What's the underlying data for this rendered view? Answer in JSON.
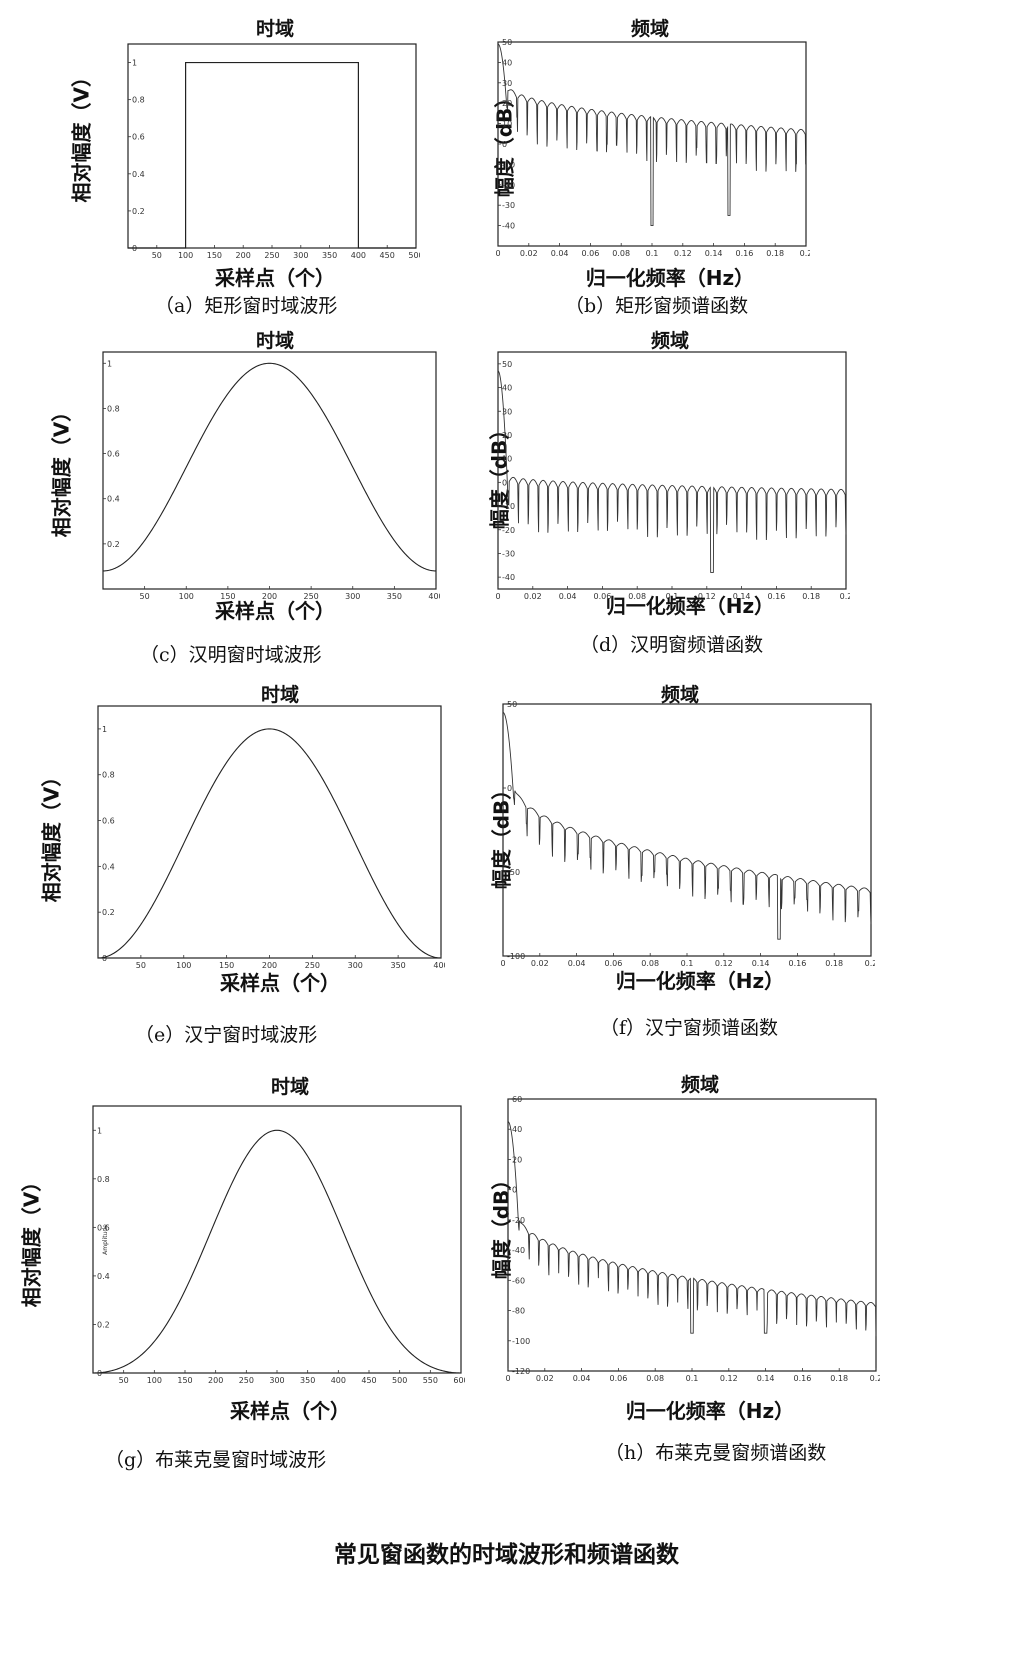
{
  "main_caption": "常见窗函数的时域波形和频谱函数",
  "chart_data": [
    {
      "id": "a",
      "type": "line",
      "shape": "rect",
      "title": "时域",
      "xlabel": "采样点（个）",
      "ylabel": "相对幅度（V）",
      "caption": "（a）矩形窗时域波形",
      "xlim": [
        0,
        500
      ],
      "ylim": [
        0,
        1.1
      ],
      "xticks": [
        "50",
        "100",
        "150",
        "200",
        "250",
        "300",
        "350",
        "400",
        "450",
        "500"
      ],
      "yticks": [
        "0",
        "0.2",
        "0.4",
        "0.6",
        "0.8",
        "1"
      ],
      "x_start": 100,
      "x_end": 400,
      "peak": 1,
      "edge_value": 0
    },
    {
      "id": "b",
      "type": "line",
      "shape": "spectrum",
      "title": "频域",
      "xlabel": "归一化频率（Hz）",
      "ylabel": "幅度（dB）",
      "caption": "（b）矩形窗频谱函数",
      "xlim": [
        0,
        0.2
      ],
      "ylim": [
        -50,
        50
      ],
      "xticks": [
        "0",
        "0.02",
        "0.04",
        "0.06",
        "0.08",
        "0.1",
        "0.12",
        "0.14",
        "0.16",
        "0.18",
        "0.2"
      ],
      "yticks": [
        "-40",
        "-30",
        "-20",
        "-10",
        "0",
        "10",
        "20",
        "30",
        "40",
        "50"
      ],
      "main_lobe_db": 49,
      "first_sidelobe_db": 30,
      "end_envelope_db": 7,
      "nulls": 30,
      "deep_nulls": [
        [
          0.1,
          -40
        ],
        [
          0.15,
          -35
        ]
      ]
    },
    {
      "id": "c",
      "type": "line",
      "shape": "hamming",
      "title": "时域",
      "xlabel": "采样点（个）",
      "ylabel": "相对幅度（V）",
      "caption": "（c）汉明窗时域波形",
      "xlim": [
        0,
        400
      ],
      "ylim": [
        0,
        1.05
      ],
      "xticks": [
        "50",
        "100",
        "150",
        "200",
        "250",
        "300",
        "350",
        "400"
      ],
      "yticks": [
        "0.2",
        "0.4",
        "0.6",
        "0.8",
        "1"
      ],
      "center": 200,
      "peak": 1,
      "edge_value": 0.08
    },
    {
      "id": "d",
      "type": "line",
      "shape": "spectrum",
      "title": "频域",
      "xlabel": "归一化频率（Hz）",
      "ylabel": "幅度（dB）",
      "caption": "（d）汉明窗频谱函数",
      "xlim": [
        0,
        0.2
      ],
      "ylim": [
        -45,
        55
      ],
      "xticks": [
        "0",
        "0.02",
        "0.04",
        "0.06",
        "0.08",
        "0.1",
        "0.12",
        "0.14",
        "0.16",
        "0.18",
        "0.2"
      ],
      "yticks": [
        "-40",
        "-30",
        "-20",
        "-10",
        "0",
        "10",
        "20",
        "30",
        "40",
        "50"
      ],
      "main_lobe_db": 47,
      "first_sidelobe_db": 3,
      "end_envelope_db": -3,
      "nulls": 34,
      "deep_nulls": [
        [
          0.123,
          -38
        ]
      ]
    },
    {
      "id": "e",
      "type": "line",
      "shape": "hann",
      "title": "时域",
      "xlabel": "采样点（个）",
      "ylabel": "相对幅度（V）",
      "caption": "（e）汉宁窗时域波形",
      "xlim": [
        0,
        400
      ],
      "ylim": [
        0,
        1.1
      ],
      "xticks": [
        "50",
        "100",
        "150",
        "200",
        "250",
        "300",
        "350",
        "400"
      ],
      "yticks": [
        "0",
        "0.2",
        "0.4",
        "0.6",
        "0.8",
        "1"
      ],
      "center": 200,
      "peak": 1,
      "edge_value": 0
    },
    {
      "id": "f",
      "type": "line",
      "shape": "spectrum",
      "title": "频域",
      "xlabel": "归一化频率（Hz）",
      "ylabel": "幅度（dB）",
      "caption": "（f）汉宁窗频谱函数",
      "xlim": [
        0,
        0.2
      ],
      "ylim": [
        -100,
        50
      ],
      "xticks": [
        "0",
        "0.02",
        "0.04",
        "0.06",
        "0.08",
        "0.1",
        "0.12",
        "0.14",
        "0.16",
        "0.18",
        "0.2"
      ],
      "yticks": [
        "-100",
        "-50",
        "0",
        "50"
      ],
      "main_lobe_db": 45,
      "first_sidelobe_db": 5,
      "end_envelope_db": -60,
      "nulls": 28,
      "deep_nulls": [
        [
          0.15,
          -90
        ]
      ]
    },
    {
      "id": "g",
      "type": "line",
      "shape": "blackman",
      "title": "时域",
      "xlabel": "采样点（个）",
      "ylabel": "相对幅度（V）",
      "inner_ylabel": "Amplitude",
      "caption": "（g）布莱克曼窗时域波形",
      "xlim": [
        0,
        600
      ],
      "ylim": [
        0,
        1.1
      ],
      "xticks": [
        "50",
        "100",
        "150",
        "200",
        "250",
        "300",
        "350",
        "400",
        "450",
        "500",
        "550",
        "600"
      ],
      "yticks": [
        "0",
        "0.2",
        "0.4",
        "0.6",
        "0.8",
        "1"
      ],
      "center": 300,
      "peak": 1,
      "edge_value": 0
    },
    {
      "id": "h",
      "type": "line",
      "shape": "spectrum",
      "title": "频域",
      "xlabel": "归一化频率（Hz）",
      "ylabel": "幅度（dB）",
      "caption": "（h）布莱克曼窗频谱函数",
      "xlim": [
        0,
        0.2
      ],
      "ylim": [
        -120,
        60
      ],
      "xticks": [
        "0",
        "0.02",
        "0.04",
        "0.06",
        "0.08",
        "0.1",
        "0.12",
        "0.14",
        "0.16",
        "0.18",
        "0.2"
      ],
      "yticks": [
        "-120",
        "-100",
        "-80",
        "-60",
        "-40",
        "-20",
        "0",
        "20",
        "40",
        "60"
      ],
      "main_lobe_db": 45,
      "first_sidelobe_db": -15,
      "end_envelope_db": -75,
      "nulls": 36,
      "deep_nulls": [
        [
          0.1,
          -95
        ],
        [
          0.14,
          -95
        ]
      ]
    }
  ]
}
